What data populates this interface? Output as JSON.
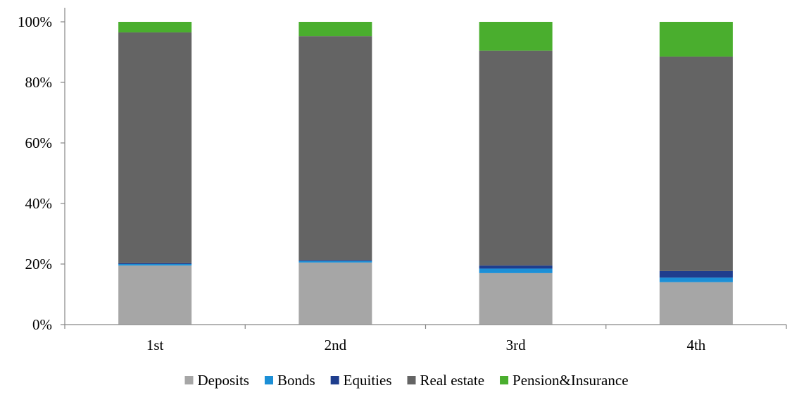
{
  "chart_data": {
    "type": "bar",
    "stacked": true,
    "categories": [
      "1st",
      "2nd",
      "3rd",
      "4th"
    ],
    "series": [
      {
        "name": "Deposits",
        "color": "#a6a6a6",
        "values": [
          19.5,
          20.5,
          17.0,
          14.0
        ]
      },
      {
        "name": "Bonds",
        "color": "#1c8fd6",
        "values": [
          0.5,
          0.5,
          1.5,
          1.5
        ]
      },
      {
        "name": "Equities",
        "color": "#1f3e8e",
        "values": [
          0.3,
          0.3,
          1.0,
          2.2
        ]
      },
      {
        "name": "Real estate",
        "color": "#646464",
        "values": [
          76.2,
          74.0,
          71.0,
          70.8
        ]
      },
      {
        "name": "Pension&Insurance",
        "color": "#4aae2e",
        "values": [
          3.5,
          4.7,
          9.5,
          11.5
        ]
      }
    ],
    "ylim": [
      0,
      100
    ],
    "yticks": [
      0,
      20,
      40,
      60,
      80,
      100
    ],
    "ytick_labels": [
      "0%",
      "20%",
      "40%",
      "60%",
      "80%",
      "100%"
    ],
    "legend_position": "bottom",
    "grid": false
  }
}
